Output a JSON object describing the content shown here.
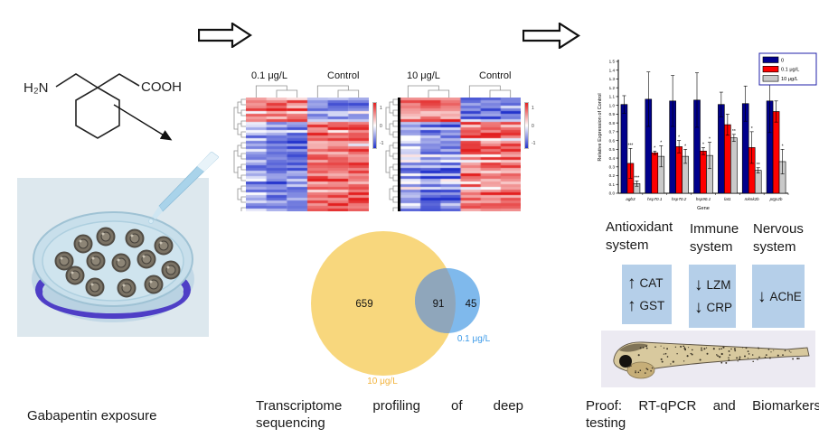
{
  "captions": {
    "left": "Gabapentin exposure",
    "middle_line1": "Transcriptome profiling of deep",
    "middle_line2": "sequencing",
    "right_line1": "Proof: RT-qPCR and Biomarkers",
    "right_line2": "testing"
  },
  "molecule": {
    "left_group": "H₂N",
    "right_group": "COOH"
  },
  "heatmaps": [
    {
      "group_label": "0.1 μg/L",
      "control_label": "Control",
      "colorbar_ticks": [
        "1",
        "0",
        "-1"
      ],
      "rows": 42,
      "cols": 6,
      "seed": 7,
      "top_block_rows": 9,
      "has_row_names": false
    },
    {
      "group_label": "10 μg/L",
      "control_label": "Control",
      "colorbar_ticks": [
        "1",
        "0",
        "-1"
      ],
      "rows": 42,
      "cols": 6,
      "seed": 13,
      "top_block_rows": 9,
      "has_row_names": true
    }
  ],
  "venn": {
    "left_only": "659",
    "overlap": "91",
    "right_only": "45",
    "left_label": "10 μg/L",
    "right_label": "0.1 μg/L",
    "left_color": "#f8d77d",
    "right_color": "#7fb9ec",
    "overlap_color": "#8fa6bb",
    "left_label_color": "#f2b33d",
    "right_label_color": "#3d9be9"
  },
  "chart_data": {
    "type": "bar",
    "title": "",
    "xlabel": "Gene",
    "ylabel": "Relative Expression of Control",
    "ylim": [
      0.0,
      1.5
    ],
    "ytick_step": 0.1,
    "grid": false,
    "legend_position": "top-right",
    "categories": [
      "agb3",
      "hsp70.1",
      "hsp70.2",
      "hsp90.1",
      "lat1",
      "mknk2b",
      "ptgs2b"
    ],
    "series": [
      {
        "name": "0",
        "color": "#00008b",
        "values": [
          1.01,
          1.07,
          1.05,
          1.06,
          1.01,
          1.02,
          1.05
        ],
        "errors": [
          0.1,
          0.31,
          0.29,
          0.31,
          0.14,
          0.2,
          0.36
        ],
        "sig": [
          "",
          "",
          "",
          "",
          "",
          "",
          ""
        ]
      },
      {
        "name": "0.1 μg/L",
        "color": "#fe0000",
        "values": [
          0.34,
          0.46,
          0.53,
          0.48,
          0.78,
          0.52,
          0.93
        ],
        "errors": [
          0.17,
          0.02,
          0.07,
          0.04,
          0.12,
          0.18,
          0.12
        ],
        "sig": [
          "***",
          "*",
          "*",
          "*",
          "",
          "*",
          ""
        ]
      },
      {
        "name": "10 μg/L",
        "color": "#c9c9c9",
        "values": [
          0.11,
          0.42,
          0.42,
          0.43,
          0.63,
          0.26,
          0.36
        ],
        "errors": [
          0.03,
          0.12,
          0.08,
          0.15,
          0.04,
          0.03,
          0.14
        ],
        "sig": [
          "***",
          "*",
          "*",
          "*",
          "**",
          "**",
          "*"
        ]
      }
    ]
  },
  "systems": [
    {
      "title_line1": "Antioxidant",
      "title_line2": "system",
      "markers": [
        {
          "dir": "up",
          "glyph": "↑",
          "label": "CAT"
        },
        {
          "dir": "up",
          "glyph": "↑",
          "label": "GST"
        }
      ]
    },
    {
      "title_line1": "Immune",
      "title_line2": "system",
      "markers": [
        {
          "dir": "down",
          "glyph": "↓",
          "label": "LZM"
        },
        {
          "dir": "down",
          "glyph": "↓",
          "label": "CRP"
        }
      ]
    },
    {
      "title_line1": "Nervous",
      "title_line2": "system",
      "markers": [
        {
          "dir": "down",
          "glyph": "↓",
          "label": "AChE"
        }
      ]
    }
  ]
}
